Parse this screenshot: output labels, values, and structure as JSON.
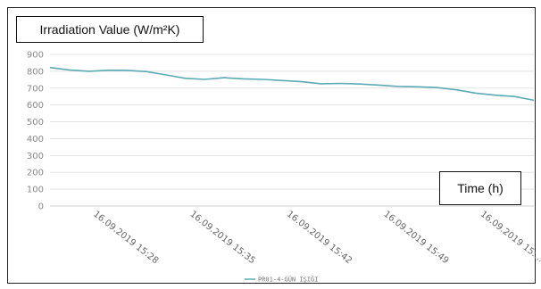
{
  "chart_data": {
    "type": "line",
    "ylabel": "Irradiation Value (W/m²K)",
    "xlabel": "Time (h)",
    "ylim": [
      0,
      900
    ],
    "yticks": [
      0,
      100,
      200,
      300,
      400,
      500,
      600,
      700,
      800,
      900
    ],
    "x_tick_labels": [
      "16.09.2019 15:28",
      "16.09.2019 15:35",
      "16.09.2019 15:42",
      "16.09.2019 15:49",
      "16.09.2019 15:…"
    ],
    "grid": true,
    "legend_position": "bottom-center",
    "series": [
      {
        "name": "PR01-4-GÜN IŞIĞI",
        "color": "#5aaab5",
        "values": [
          822,
          808,
          800,
          806,
          805,
          798,
          778,
          758,
          752,
          762,
          755,
          752,
          745,
          738,
          726,
          728,
          724,
          718,
          710,
          708,
          703,
          690,
          670,
          658,
          650,
          628
        ]
      }
    ]
  },
  "colors": {
    "series": "#5aaab5",
    "grid": "#e3e3e3",
    "axis": "#cfcfcf",
    "frame": "#222222"
  }
}
